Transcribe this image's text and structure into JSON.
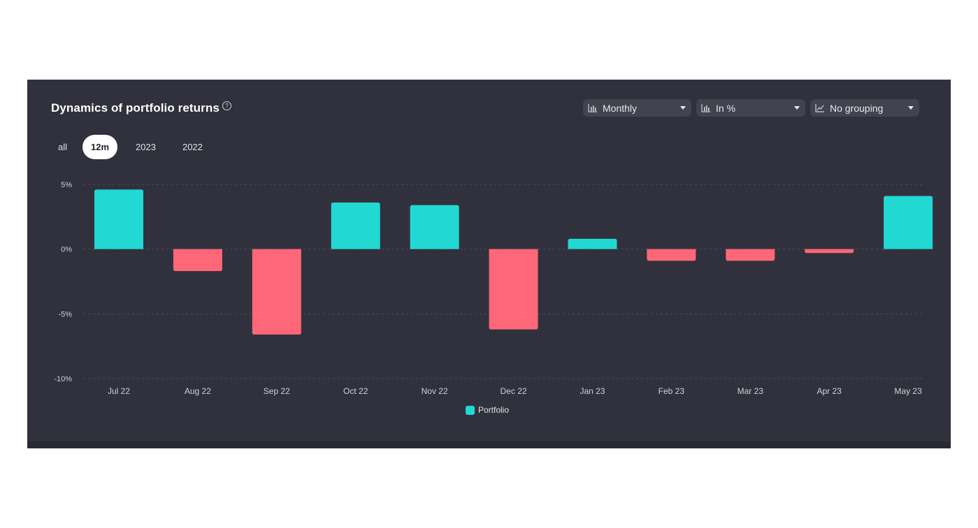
{
  "header": {
    "title": "Dynamics of portfolio returns",
    "help_icon": "?"
  },
  "controls": {
    "selects": [
      {
        "label": "Monthly",
        "icon": "bar-chart-icon"
      },
      {
        "label": "In %",
        "icon": "bar-chart-icon"
      },
      {
        "label": "No grouping",
        "icon": "line-chart-icon"
      }
    ],
    "periods": [
      "all",
      "12m",
      "2023",
      "2022"
    ],
    "active_period": "12m"
  },
  "colors": {
    "positive": "#22d8d2",
    "negative": "#fd6778",
    "panel_bg": "#31313d"
  },
  "chart_data": {
    "type": "bar",
    "categories": [
      "Jul 22",
      "Aug 22",
      "Sep 22",
      "Oct 22",
      "Nov 22",
      "Dec 22",
      "Jan 23",
      "Feb 23",
      "Mar 23",
      "Apr 23",
      "May 23"
    ],
    "series": [
      {
        "name": "Portfolio",
        "values": [
          4.6,
          -1.7,
          -6.6,
          3.6,
          3.4,
          -6.2,
          0.8,
          -0.9,
          -0.9,
          -0.3,
          4.1
        ]
      }
    ],
    "yticks": [
      "5%",
      "0%",
      "-5%",
      "-10%"
    ],
    "ytick_values": [
      5,
      0,
      -5,
      -10
    ],
    "ylim": [
      -10,
      5
    ],
    "grid": true,
    "legend_position": "bottom-center"
  }
}
